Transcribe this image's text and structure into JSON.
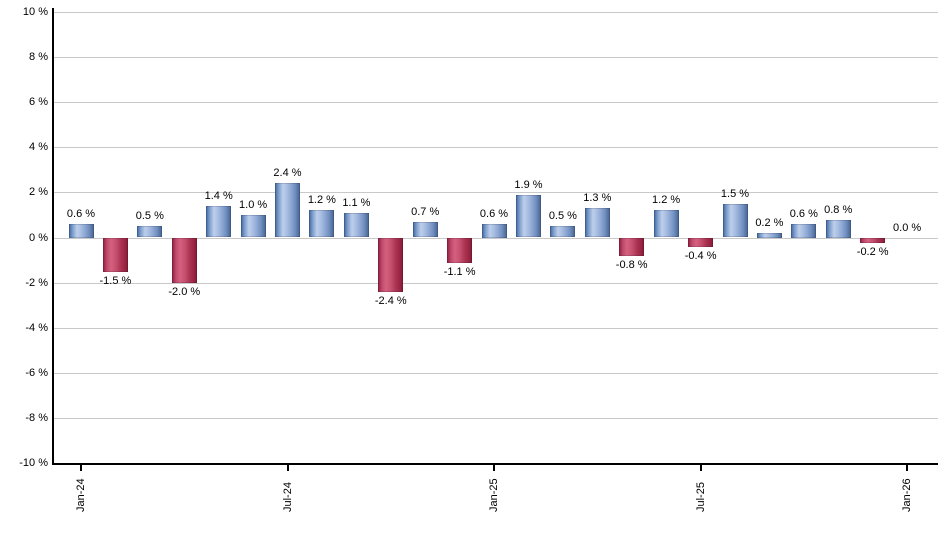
{
  "chart_data": {
    "type": "bar",
    "title": "",
    "xlabel": "",
    "ylabel": "",
    "ylim": [
      -10,
      10
    ],
    "grid": true,
    "legend": "none",
    "unit": "%",
    "values": [
      0.6,
      -1.5,
      0.5,
      -2.0,
      1.4,
      1.0,
      2.4,
      1.2,
      1.1,
      -2.4,
      0.7,
      -1.1,
      0.6,
      1.9,
      0.5,
      1.3,
      -0.8,
      1.2,
      -0.4,
      1.5,
      0.2,
      0.6,
      0.8,
      -0.2,
      0.0
    ],
    "bar_value_labels": [
      "0.6 %",
      "-1.5 %",
      "0.5 %",
      "-2.0 %",
      "1.4 %",
      "1.0 %",
      "2.4 %",
      "1.2 %",
      "1.1 %",
      "-2.4 %",
      "0.7 %",
      "-1.1 %",
      "0.6 %",
      "1.9 %",
      "0.5 %",
      "1.3 %",
      "-0.8 %",
      "1.2 %",
      "-0.4 %",
      "1.5 %",
      "0.2 %",
      "0.6 %",
      "0.8 %",
      "-0.2 %",
      "0.0 %"
    ],
    "x_ticks": [
      {
        "label": "Jan-24",
        "index": 0
      },
      {
        "label": "Jul-24",
        "index": 6
      },
      {
        "label": "Jan-25",
        "index": 12
      },
      {
        "label": "Jul-25",
        "index": 18
      },
      {
        "label": "Jan-26",
        "index": 24
      }
    ],
    "y_ticks": [
      {
        "label": "10 %",
        "value": 10
      },
      {
        "label": "8 %",
        "value": 8
      },
      {
        "label": "6 %",
        "value": 6
      },
      {
        "label": "4 %",
        "value": 4
      },
      {
        "label": "2 %",
        "value": 2
      },
      {
        "label": "0 %",
        "value": 0
      },
      {
        "label": "-2 %",
        "value": -2
      },
      {
        "label": "-4 %",
        "value": -4
      },
      {
        "label": "-6 %",
        "value": -6
      },
      {
        "label": "-8 %",
        "value": -8
      },
      {
        "label": "-10 %",
        "value": -10
      }
    ],
    "colors": {
      "positive_bar_dark": "#41659b",
      "positive_bar_light": "#bdcfec",
      "negative_bar_dark": "#8f1c3d",
      "negative_bar_light": "#d5617f",
      "gridline": "#c9c9c9",
      "axis": "#000000",
      "label_text": "#000000",
      "background": "#ffffff"
    }
  }
}
